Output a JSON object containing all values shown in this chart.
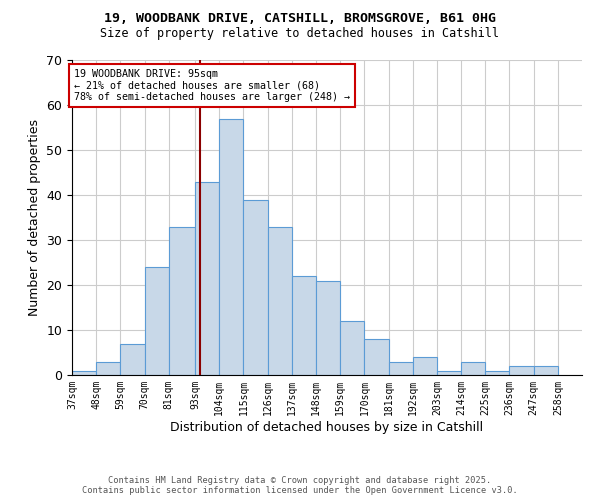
{
  "title_line1": "19, WOODBANK DRIVE, CATSHILL, BROMSGROVE, B61 0HG",
  "title_line2": "Size of property relative to detached houses in Catshill",
  "xlabel": "Distribution of detached houses by size in Catshill",
  "ylabel": "Number of detached properties",
  "bin_labels": [
    "37sqm",
    "48sqm",
    "59sqm",
    "70sqm",
    "81sqm",
    "93sqm",
    "104sqm",
    "115sqm",
    "126sqm",
    "137sqm",
    "148sqm",
    "159sqm",
    "170sqm",
    "181sqm",
    "192sqm",
    "203sqm",
    "214sqm",
    "225sqm",
    "236sqm",
    "247sqm",
    "258sqm"
  ],
  "bin_edges": [
    37,
    48,
    59,
    70,
    81,
    93,
    104,
    115,
    126,
    137,
    148,
    159,
    170,
    181,
    192,
    203,
    214,
    225,
    236,
    247,
    258
  ],
  "bar_heights": [
    1,
    3,
    7,
    24,
    33,
    43,
    57,
    39,
    33,
    22,
    21,
    12,
    8,
    3,
    4,
    1,
    3,
    1,
    2,
    2
  ],
  "bar_color": "#c8d8e8",
  "bar_edge_color": "#5b9bd5",
  "property_size": 95,
  "marker_line_color": "#8b0000",
  "annotation_text": "19 WOODBANK DRIVE: 95sqm\n← 21% of detached houses are smaller (68)\n78% of semi-detached houses are larger (248) →",
  "annotation_box_color": "#ffffff",
  "annotation_box_edge_color": "#cc0000",
  "ylim": [
    0,
    70
  ],
  "yticks": [
    0,
    10,
    20,
    30,
    40,
    50,
    60,
    70
  ],
  "grid_color": "#cccccc",
  "background_color": "#ffffff",
  "footnote": "Contains HM Land Registry data © Crown copyright and database right 2025.\nContains public sector information licensed under the Open Government Licence v3.0."
}
